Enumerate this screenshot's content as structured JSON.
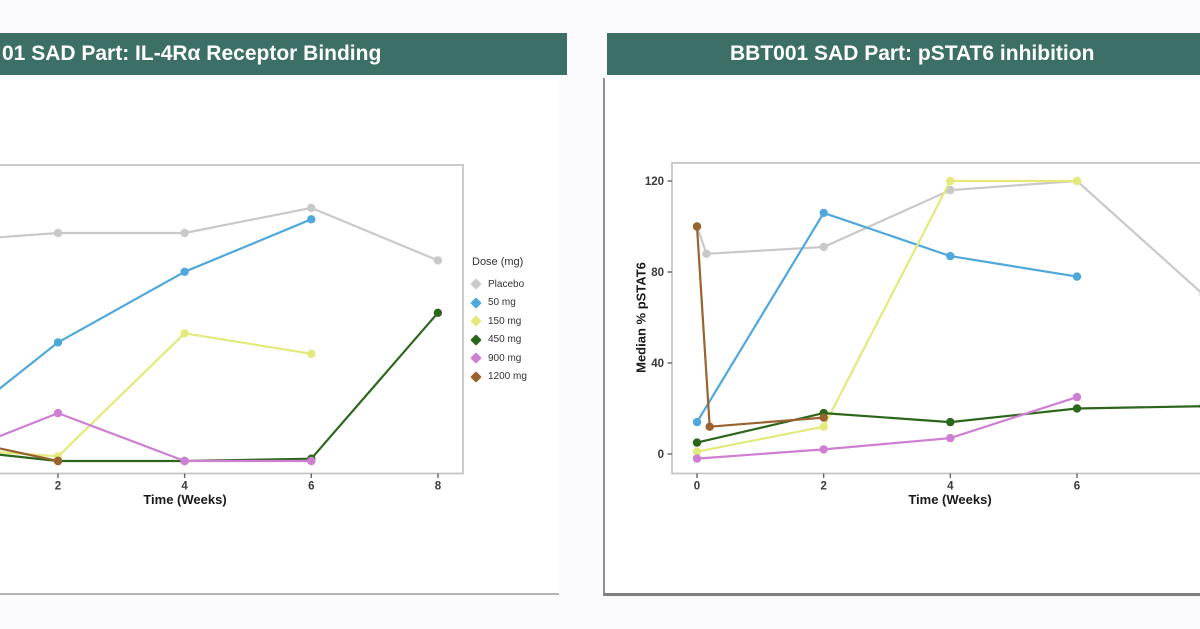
{
  "colors": {
    "header_bg": "#3C6F66",
    "header_text": "#ffffff",
    "plot_frame": "#c6c6c6",
    "tick_text": "#3b3b3b"
  },
  "panels": {
    "left": {
      "title": "01 SAD Part: IL-4Rα Receptor Binding"
    },
    "right": {
      "title": "BBT001 SAD Part: pSTAT6 inhibition"
    }
  },
  "legend": {
    "title": "Dose (mg)"
  },
  "chart_data": [
    {
      "type": "line",
      "title": "01 SAD Part: IL-4Rα Receptor Binding",
      "xlabel": "Time (Weeks)",
      "ylabel": "",
      "x_ticks": [
        2,
        4,
        6,
        8
      ],
      "y_ticks": [],
      "y_axis_hidden": true,
      "x_visible_range": [
        1.1,
        8.45
      ],
      "legend_position": "right",
      "grid": false,
      "series": [
        {
          "name": "Placebo",
          "color": "#c9c9c9",
          "points": [
            [
              1,
              98
            ],
            [
              2,
              100
            ],
            [
              4,
              100
            ],
            [
              6,
              111
            ],
            [
              8,
              88
            ]
          ]
        },
        {
          "name": "50 mg",
          "color": "#4FA8DC",
          "points": [
            [
              1,
              30
            ],
            [
              2,
              52
            ],
            [
              4,
              83
            ],
            [
              6,
              106
            ]
          ]
        },
        {
          "name": "150 mg",
          "color": "#E4E97B",
          "points": [
            [
              1,
              4
            ],
            [
              2,
              2
            ],
            [
              4,
              56
            ],
            [
              6,
              47
            ]
          ]
        },
        {
          "name": "450 mg",
          "color": "#2C651C",
          "points": [
            [
              1,
              3
            ],
            [
              2,
              0
            ],
            [
              4,
              0
            ],
            [
              6,
              1
            ],
            [
              8,
              65
            ]
          ]
        },
        {
          "name": "900 mg",
          "color": "#CE7FD2",
          "points": [
            [
              1,
              10
            ],
            [
              2,
              21
            ],
            [
              4,
              0
            ],
            [
              6,
              0
            ]
          ]
        },
        {
          "name": "1200 mg",
          "color": "#99622F",
          "points": [
            [
              1,
              6
            ],
            [
              2,
              0
            ]
          ]
        }
      ]
    },
    {
      "type": "line",
      "title": "BBT001 SAD Part: pSTAT6 inhibition",
      "xlabel": "Time (Weeks)",
      "ylabel": "Median % pSTAT6",
      "x_ticks": [
        0,
        2,
        4,
        6
      ],
      "y_ticks": [
        0,
        40,
        80,
        120
      ],
      "ylim": [
        -8,
        128
      ],
      "grid": false,
      "series": [
        {
          "name": "Placebo",
          "color": "#c9c9c9",
          "points": [
            [
              0,
              100
            ],
            [
              0.15,
              88
            ],
            [
              2,
              91
            ],
            [
              4,
              116
            ],
            [
              6,
              120
            ],
            [
              8,
              70
            ]
          ]
        },
        {
          "name": "50 mg",
          "color": "#4FA8DC",
          "points": [
            [
              0,
              14
            ],
            [
              2,
              106
            ],
            [
              4,
              87
            ],
            [
              6,
              78
            ]
          ]
        },
        {
          "name": "150 mg",
          "color": "#E4E97B",
          "points": [
            [
              0,
              1
            ],
            [
              2,
              12
            ],
            [
              4,
              120
            ],
            [
              6,
              120
            ]
          ]
        },
        {
          "name": "450 mg",
          "color": "#2C651C",
          "points": [
            [
              0,
              5
            ],
            [
              2,
              18
            ],
            [
              4,
              14
            ],
            [
              6,
              20
            ],
            [
              8,
              21
            ]
          ]
        },
        {
          "name": "900 mg",
          "color": "#CE7FD2",
          "points": [
            [
              0,
              -2
            ],
            [
              2,
              2
            ],
            [
              4,
              7
            ],
            [
              6,
              25
            ]
          ]
        },
        {
          "name": "1200 mg",
          "color": "#99622F",
          "points": [
            [
              0,
              100
            ],
            [
              0.2,
              12
            ],
            [
              2,
              16
            ]
          ]
        }
      ]
    }
  ]
}
